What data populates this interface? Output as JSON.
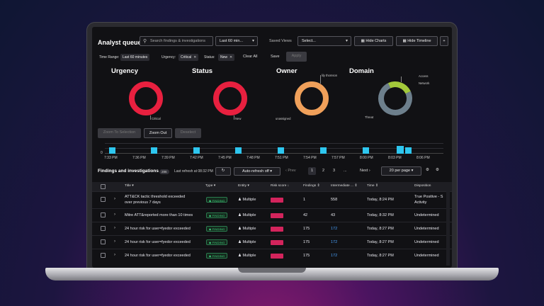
{
  "app": {
    "title": "Analyst queue",
    "search_placeholder": "Search findings & investigations",
    "time_range_select": "Last 60 min...",
    "saved_views_label": "Saved Views",
    "saved_views_select": "Select...",
    "hide_charts": "Hide Charts",
    "hide_timeline": "Hide Timeline",
    "add": "+"
  },
  "filters": {
    "time_range_label": "Time Range:",
    "time_range_value": "Last 60 minutes",
    "urgency_label": "Urgency:",
    "urgency_value": "Critical",
    "status_label": "Status:",
    "status_value": "New",
    "clear_all": "Clear All",
    "save": "Save",
    "apply": "Apply"
  },
  "donuts": [
    {
      "title": "Urgency",
      "color": "#e8203f",
      "labels": [
        "Critical"
      ]
    },
    {
      "title": "Status",
      "color": "#e8203f",
      "labels": [
        "New"
      ]
    },
    {
      "title": "Owner",
      "color": "#f0a05a",
      "labels": [
        "lily thomson",
        "unassigned"
      ]
    },
    {
      "title": "Domain",
      "color": "#6d7f8c",
      "accent": "#a3c93a",
      "labels": [
        "Access",
        "Network",
        "Threat"
      ]
    }
  ],
  "timeline": {
    "zoom_to_selection": "Zoom To Selection",
    "zoom_out": "Zoom Out",
    "deselect": "Deselect",
    "y_tick": "0",
    "x_ticks": [
      "7:33 PM",
      "7:36 PM",
      "7:39 PM",
      "7:42 PM",
      "7:45 PM",
      "7:48 PM",
      "7:51 PM",
      "7:54 PM",
      "7:57 PM",
      "8:00 PM",
      "8:03 PM",
      "8:06 PM"
    ]
  },
  "findings": {
    "title": "Findings and investigations",
    "count": "286",
    "last_refresh": "Last refresh at 08:32 PM",
    "refresh_icon": "refresh-icon",
    "auto_refresh": "Auto-refresh off",
    "prev": "Prev",
    "pages": [
      "1",
      "2",
      "3"
    ],
    "ellipsis": "...",
    "next": "Next",
    "per_page": "20 per page",
    "columns": [
      "Title",
      "Type",
      "Entity",
      "Risk score",
      "Findings",
      "Intermediate ...",
      "Time",
      "Disposition"
    ],
    "rows": [
      {
        "title_line1": "ATT&CK tactic threshold exceeded",
        "title_line2": "over previous 7 days",
        "type": "FINDING",
        "entity": "Multiple",
        "risk": "",
        "findings": "1",
        "intermediate": "558",
        "time": "Today, 8:24 PM",
        "disposition_line1": "True Positive - S",
        "disposition_line2": "Activity",
        "intermediate_link": false
      },
      {
        "title_line1": "Mitre ATT&reported more than 10 times",
        "title_line2": "",
        "type": "FINDING",
        "entity": "Multiple",
        "risk": "",
        "findings": "42",
        "intermediate": "43",
        "time": "Today, 8:32 PM",
        "disposition_line1": "Undetermined",
        "disposition_line2": "",
        "intermediate_link": false
      },
      {
        "title_line1": "24 hour risk for user=fyedor exceeded",
        "title_line2": "",
        "type": "FINDING",
        "entity": "Multiple",
        "risk": "",
        "findings": "175",
        "intermediate": "172",
        "time": "Today, 8:27 PM",
        "disposition_line1": "Undetermined",
        "disposition_line2": "",
        "intermediate_link": true
      },
      {
        "title_line1": "24 hour risk for user=fyedor exceeded",
        "title_line2": "",
        "type": "FINDING",
        "entity": "Multiple",
        "risk": "",
        "findings": "175",
        "intermediate": "172",
        "time": "Today, 8:27 PM",
        "disposition_line1": "Undetermined",
        "disposition_line2": "",
        "intermediate_link": true
      },
      {
        "title_line1": "24 hour risk for user=fyedor exceeded",
        "title_line2": "",
        "type": "FINDING",
        "entity": "Multiple",
        "risk": "",
        "findings": "175",
        "intermediate": "172",
        "time": "Today, 8:27 PM",
        "disposition_line1": "Undetermined",
        "disposition_line2": "",
        "intermediate_link": true
      }
    ]
  }
}
